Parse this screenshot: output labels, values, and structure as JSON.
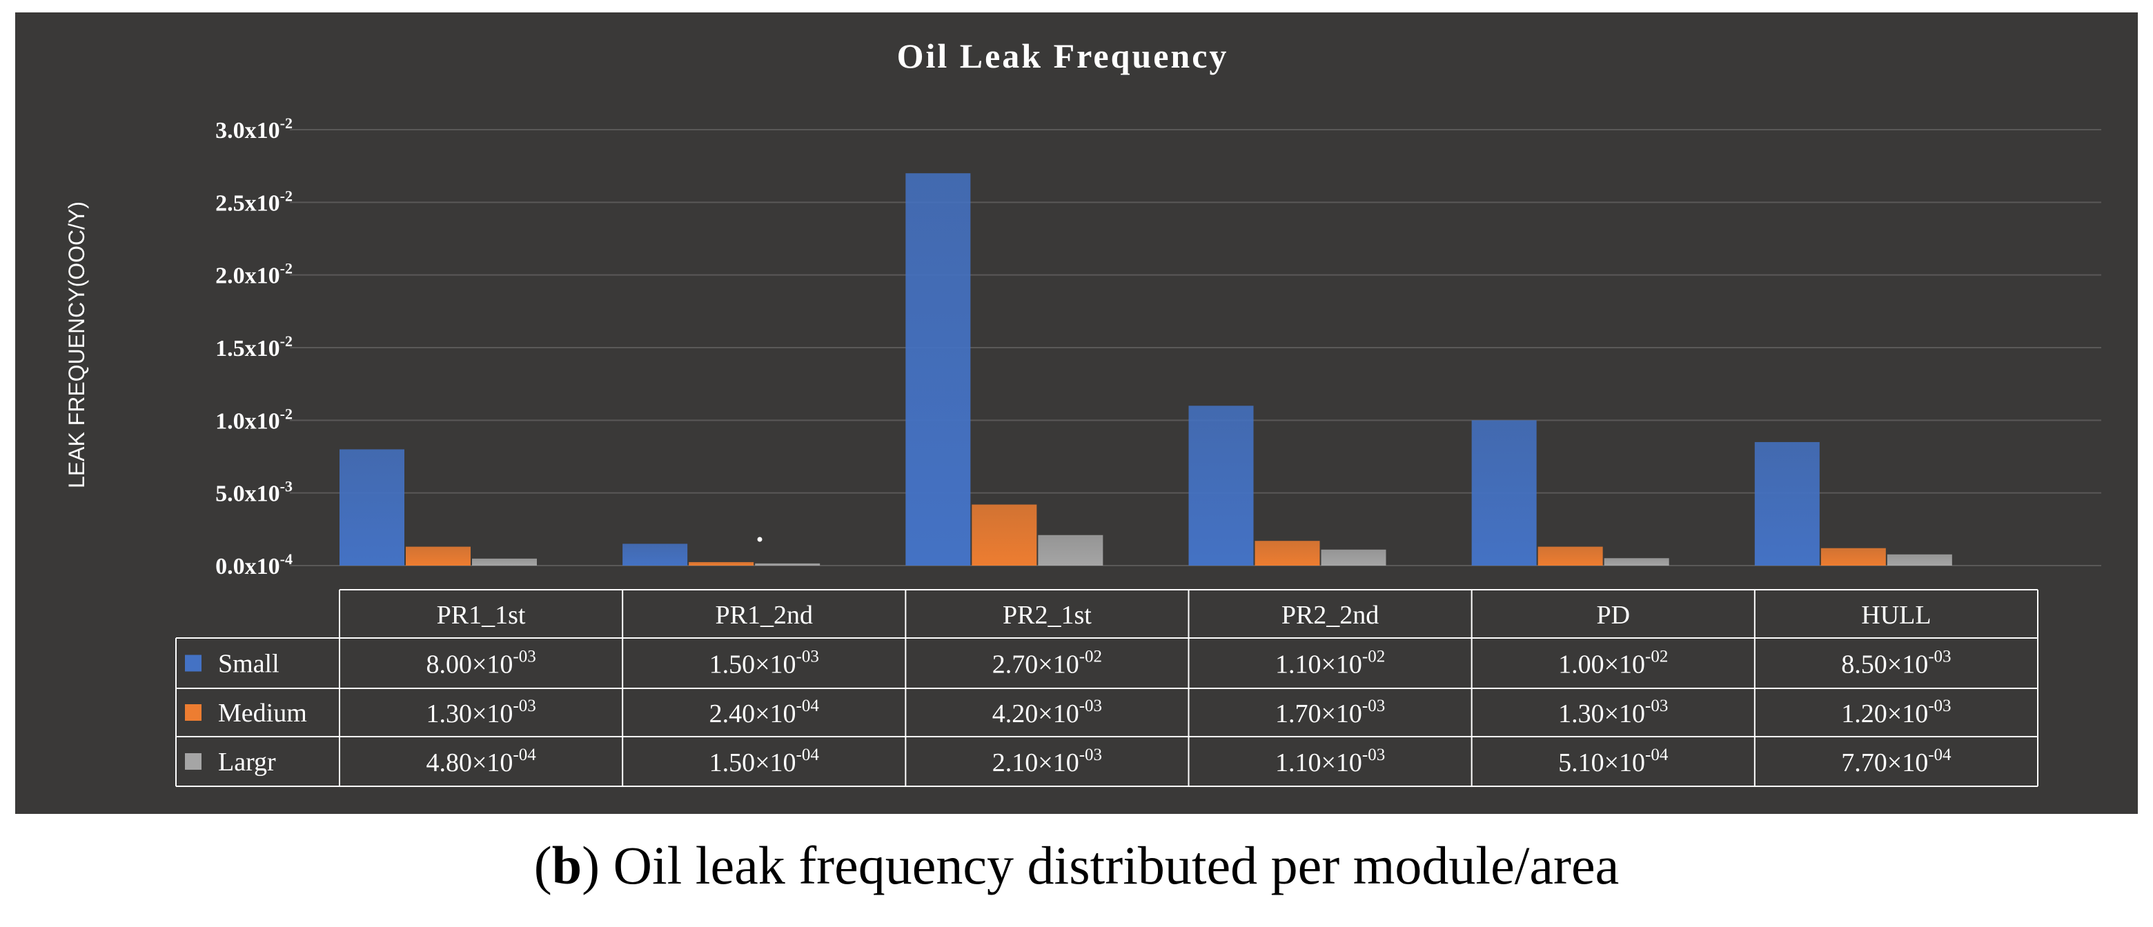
{
  "caption": {
    "label": "b",
    "text": "Oil leak frequency distributed per module/area"
  },
  "colors": {
    "background": "#3a3938",
    "small": "#4472c4",
    "medium": "#ed7d31",
    "largr": "#a5a5a5"
  },
  "chart_data": {
    "type": "bar",
    "title": "Oil Leak Frequency",
    "ylabel": "LEAK FREQUENCY(OOC/Y)",
    "xlabel": "",
    "ylim": [
      0,
      0.03
    ],
    "grid": true,
    "legend": "bottom-left (inside data table)",
    "categories": [
      "PR1_1st",
      "PR1_2nd",
      "PR2_1st",
      "PR2_2nd",
      "PD",
      "HULL"
    ],
    "y_ticks": [
      {
        "value": 0.03,
        "mantissa": "3.0x10",
        "exp": "-2"
      },
      {
        "value": 0.025,
        "mantissa": "2.5x10",
        "exp": "-2"
      },
      {
        "value": 0.02,
        "mantissa": "2.0x10",
        "exp": "-2"
      },
      {
        "value": 0.015,
        "mantissa": "1.5x10",
        "exp": "-2"
      },
      {
        "value": 0.01,
        "mantissa": "1.0x10",
        "exp": "-2"
      },
      {
        "value": 0.005,
        "mantissa": "5.0x10",
        "exp": "-3"
      },
      {
        "value": 0,
        "mantissa": "0.0x10",
        "exp": "-4"
      }
    ],
    "series": [
      {
        "name": "Small",
        "color": "#4472c4",
        "values": [
          0.008,
          0.0015,
          0.027,
          0.011,
          0.01,
          0.0085
        ],
        "labels": [
          {
            "m": "8.00×10",
            "e": "-03"
          },
          {
            "m": "1.50×10",
            "e": "-03"
          },
          {
            "m": "2.70×10",
            "e": "-02"
          },
          {
            "m": "1.10×10",
            "e": "-02"
          },
          {
            "m": "1.00×10",
            "e": "-02"
          },
          {
            "m": "8.50×10",
            "e": "-03"
          }
        ]
      },
      {
        "name": "Medium",
        "color": "#ed7d31",
        "values": [
          0.0013,
          0.00024,
          0.0042,
          0.0017,
          0.0013,
          0.0012
        ],
        "labels": [
          {
            "m": "1.30×10",
            "e": "-03"
          },
          {
            "m": "2.40×10",
            "e": "-04"
          },
          {
            "m": "4.20×10",
            "e": "-03"
          },
          {
            "m": "1.70×10",
            "e": "-03"
          },
          {
            "m": "1.30×10",
            "e": "-03"
          },
          {
            "m": "1.20×10",
            "e": "-03"
          }
        ]
      },
      {
        "name": "Largr",
        "color": "#a5a5a5",
        "values": [
          0.00048,
          0.00015,
          0.0021,
          0.0011,
          0.00051,
          0.00077
        ],
        "labels": [
          {
            "m": "4.80×10",
            "e": "-04"
          },
          {
            "m": "1.50×10",
            "e": "-04"
          },
          {
            "m": "2.10×10",
            "e": "-03"
          },
          {
            "m": "1.10×10",
            "e": "-03"
          },
          {
            "m": "5.10×10",
            "e": "-04"
          },
          {
            "m": "7.70×10",
            "e": "-04"
          }
        ]
      }
    ]
  }
}
